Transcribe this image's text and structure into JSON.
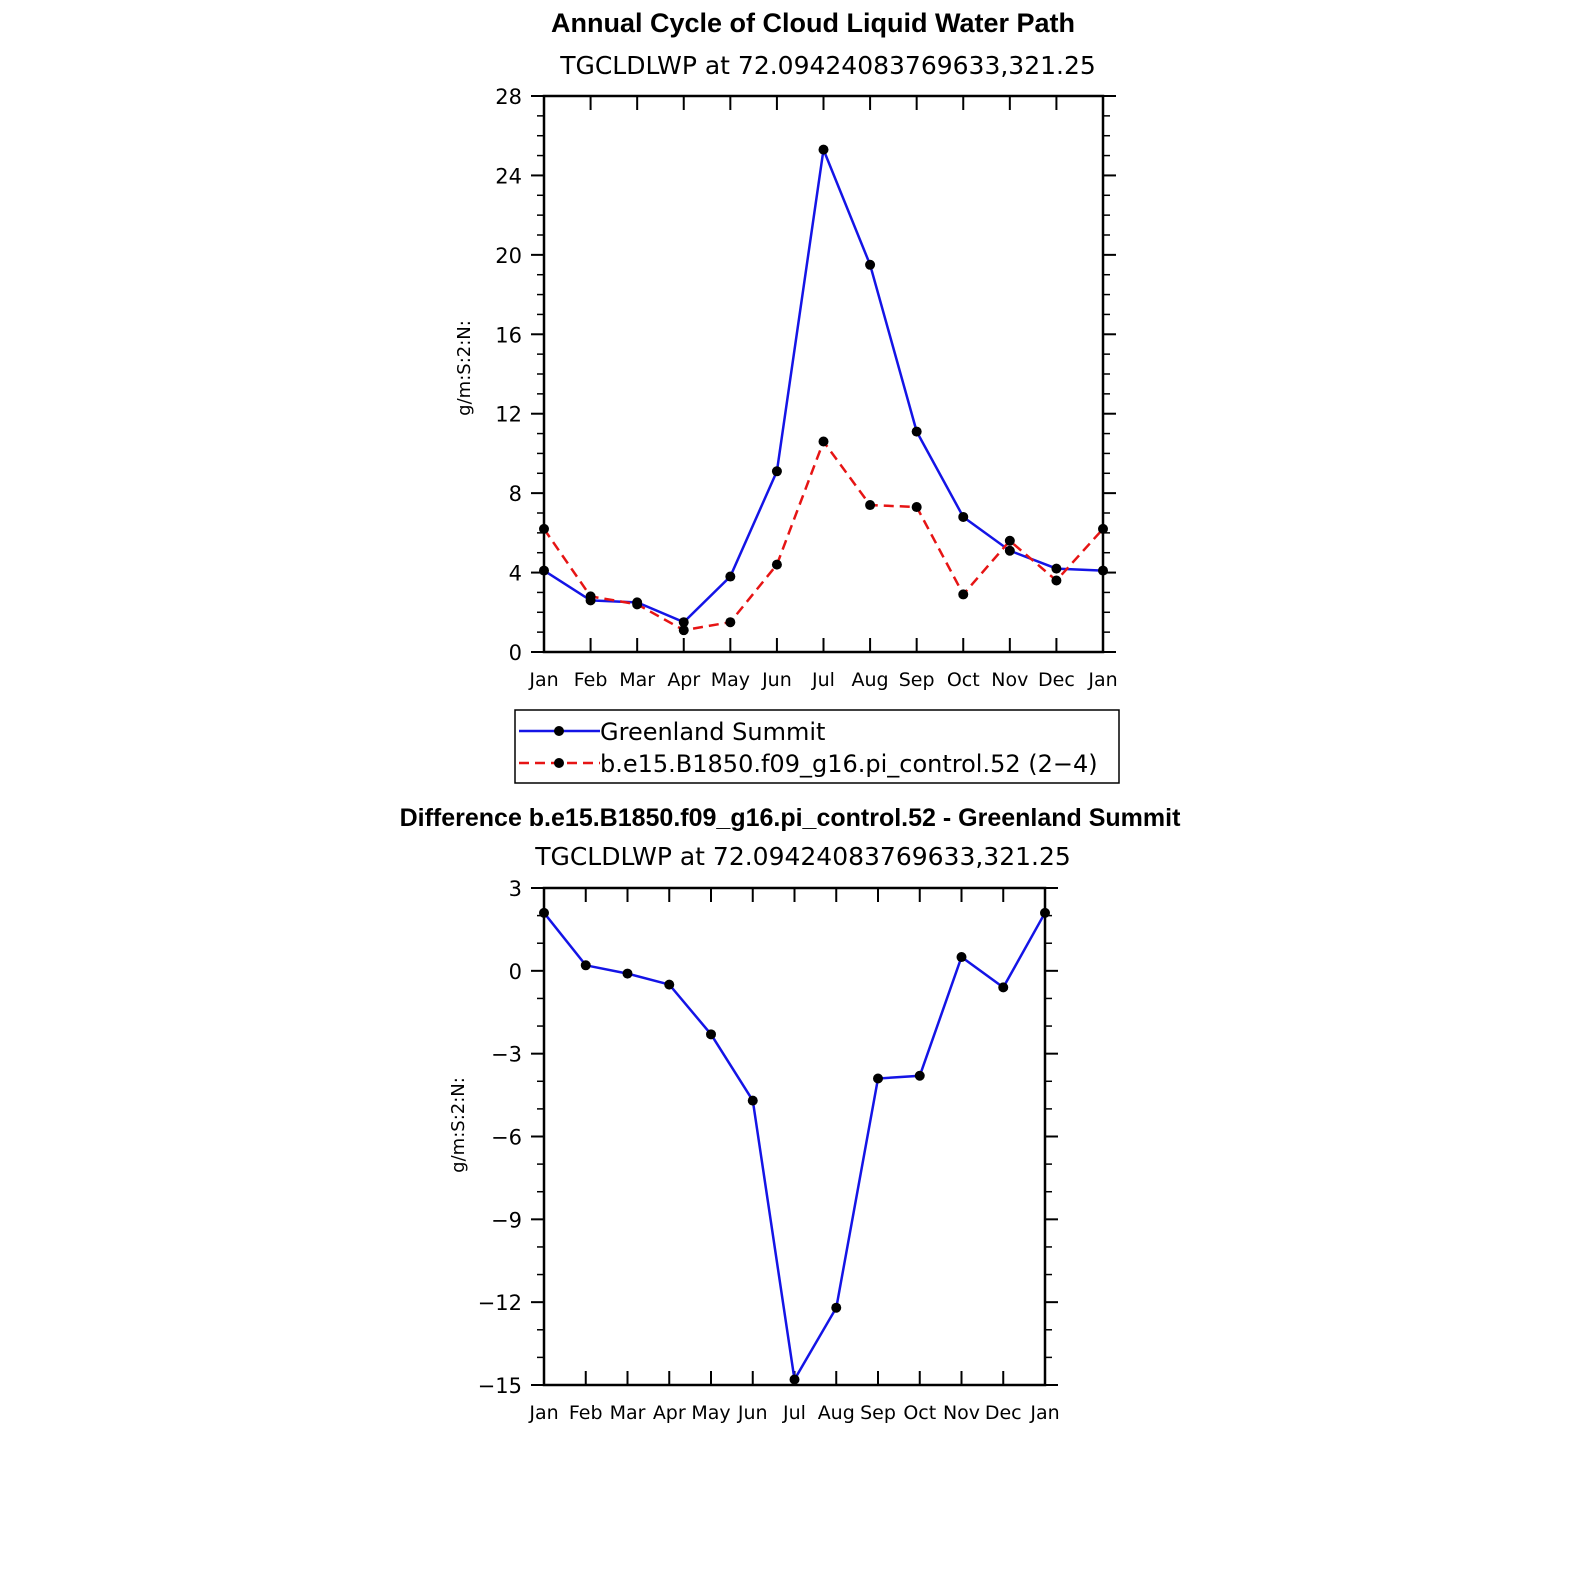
{
  "chart_data": [
    {
      "type": "line",
      "title": "Annual Cycle of Cloud Liquid Water Path",
      "subtitle": "TGCLDLWP  at  72.09424083769633,321.25",
      "ylabel": "g/m:S:2:N:",
      "xlabel": "",
      "categories": [
        "Jan",
        "Feb",
        "Mar",
        "Apr",
        "May",
        "Jun",
        "Jul",
        "Aug",
        "Sep",
        "Oct",
        "Nov",
        "Dec",
        "Jan"
      ],
      "ylim": [
        0,
        28
      ],
      "yticks": [
        "0",
        "4",
        "8",
        "12",
        "16",
        "20",
        "24",
        "28"
      ],
      "series": [
        {
          "name": "Greenland Summit",
          "color": "#1414e6",
          "style": "solid",
          "values": [
            4.1,
            2.6,
            2.5,
            1.5,
            3.8,
            9.1,
            25.3,
            19.5,
            11.1,
            6.8,
            5.1,
            4.2,
            4.1
          ]
        },
        {
          "name": "b.e15.B1850.f09_g16.pi_control.52 (2−4)",
          "color": "#e61414",
          "style": "dashed",
          "values": [
            6.2,
            2.8,
            2.4,
            1.1,
            1.5,
            4.4,
            10.6,
            7.4,
            7.3,
            2.9,
            5.6,
            3.6,
            6.2
          ]
        }
      ],
      "legend_position": "bottom"
    },
    {
      "type": "line",
      "title": "Difference b.e15.B1850.f09_g16.pi_control.52 - Greenland Summit",
      "subtitle": "TGCLDLWP  at  72.09424083769633,321.25",
      "ylabel": "g/m:S:2:N:",
      "xlabel": "",
      "categories": [
        "Jan",
        "Feb",
        "Mar",
        "Apr",
        "May",
        "Jun",
        "Jul",
        "Aug",
        "Sep",
        "Oct",
        "Nov",
        "Dec",
        "Jan"
      ],
      "ylim": [
        -15,
        3
      ],
      "yticks": [
        "−15",
        "−12",
        "−9",
        "−6",
        "−3",
        "0",
        "3"
      ],
      "series": [
        {
          "name": "Difference",
          "color": "#1414e6",
          "style": "solid",
          "values": [
            2.1,
            0.2,
            -0.1,
            -0.5,
            -2.3,
            -4.7,
            -14.8,
            -12.2,
            -3.9,
            -3.8,
            0.5,
            -0.6,
            2.1
          ]
        }
      ]
    }
  ]
}
